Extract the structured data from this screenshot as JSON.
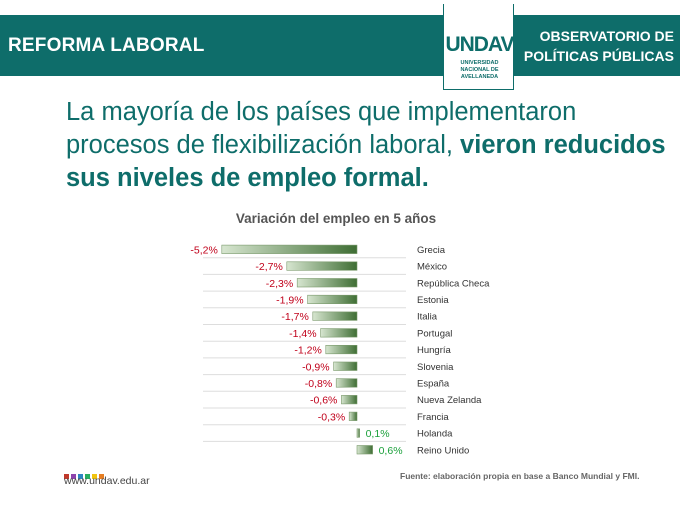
{
  "header": {
    "left_title": "REFORMA LABORAL",
    "right_title_line1": "OBSERVATORIO DE",
    "right_title_line2": "POLÍTICAS PÚBLICAS",
    "logo_text": "UNDAV",
    "logo_sub1": "UNIVERSIDAD",
    "logo_sub2": "NACIONAL DE",
    "logo_sub3": "AVELLANEDA"
  },
  "headline": {
    "part1": "La mayoría de los países que implementaron procesos de flexibilización laboral, ",
    "part2": "vieron reducidos sus niveles de empleo formal."
  },
  "footer": {
    "url": "www.undav.edu.ar",
    "source": "Fuente: elaboración propia en base a Banco Mundial y FMI.",
    "dot_colors": [
      "#c0392b",
      "#8e44ad",
      "#2e86c1",
      "#27ae60",
      "#f1c40f",
      "#e67e22"
    ]
  },
  "chart_data": {
    "type": "bar",
    "orientation": "horizontal",
    "title": "Variación del empleo en 5 años",
    "categories": [
      "Grecia",
      "México",
      "República Checa",
      "Estonia",
      "Italia",
      "Portugal",
      "Hungría",
      "Slovenia",
      "España",
      "Nueva Zelanda",
      "Francia",
      "Holanda",
      "Reino Unido"
    ],
    "values": [
      -5.2,
      -2.7,
      -2.3,
      -1.9,
      -1.7,
      -1.4,
      -1.2,
      -0.9,
      -0.8,
      -0.6,
      -0.3,
      0.1,
      0.6
    ],
    "value_labels": [
      "-5,2%",
      "-2,7%",
      "-2,3%",
      "-1,9%",
      "-1,7%",
      "-1,4%",
      "-1,2%",
      "-0,9%",
      "-0,8%",
      "-0,6%",
      "-0,3%",
      "0,1%",
      "0,6%"
    ],
    "colors": {
      "negative_label": "#c0001a",
      "positive_label": "#1aa03a",
      "bar_gradient_light": "#d7e6d0",
      "bar_gradient_dark": "#3f6e34",
      "bar_border": "#7a9a6c"
    },
    "grid": "horizontal separators"
  }
}
